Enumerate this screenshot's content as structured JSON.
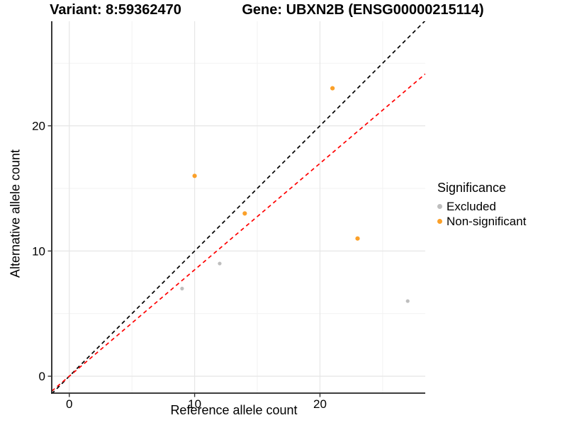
{
  "header": {
    "variant_title": "Variant: 8:59362470",
    "gene_title": "Gene: UBXN2B (ENSG00000215114)"
  },
  "axes": {
    "x_label": "Reference allele count",
    "y_label": "Alternative allele count"
  },
  "legend": {
    "title": "Significance",
    "items": [
      {
        "label": "Excluded",
        "color": "#BEBEBE"
      },
      {
        "label": "Non-significant",
        "color": "#FBA029"
      }
    ]
  },
  "chart_data": {
    "type": "scatter",
    "title": "Variant: 8:59362470 — Gene: UBXN2B (ENSG00000215114)",
    "xlabel": "Reference allele count",
    "ylabel": "Alternative allele count",
    "xlim": [
      -1.4,
      28.4
    ],
    "ylim": [
      -1.35,
      28.35
    ],
    "x_major_ticks": [
      0,
      10,
      20
    ],
    "y_major_ticks": [
      0,
      10,
      20
    ],
    "x_minor_gridlines": [
      5,
      15,
      25
    ],
    "y_minor_gridlines": [
      5,
      15,
      25
    ],
    "grid": true,
    "legend_position": "right",
    "legend_title": "Significance",
    "series": [
      {
        "name": "Excluded",
        "color": "#BEBEBE",
        "point_radius": 2.6,
        "points": [
          [
            9,
            7
          ],
          [
            12,
            9
          ],
          [
            27,
            6
          ]
        ]
      },
      {
        "name": "Non-significant",
        "color": "#FBA029",
        "point_radius": 3.1,
        "points": [
          [
            10,
            16
          ],
          [
            14,
            13
          ],
          [
            21,
            23
          ],
          [
            23,
            11
          ]
        ]
      }
    ],
    "reference_lines": [
      {
        "name": "identity-line",
        "color": "#000000",
        "style": "dashed",
        "slope": 1,
        "intercept": 0
      },
      {
        "name": "expected-ratio-line",
        "color": "#FF0000",
        "style": "dashed",
        "slope": 0.85,
        "intercept": 0
      }
    ]
  }
}
